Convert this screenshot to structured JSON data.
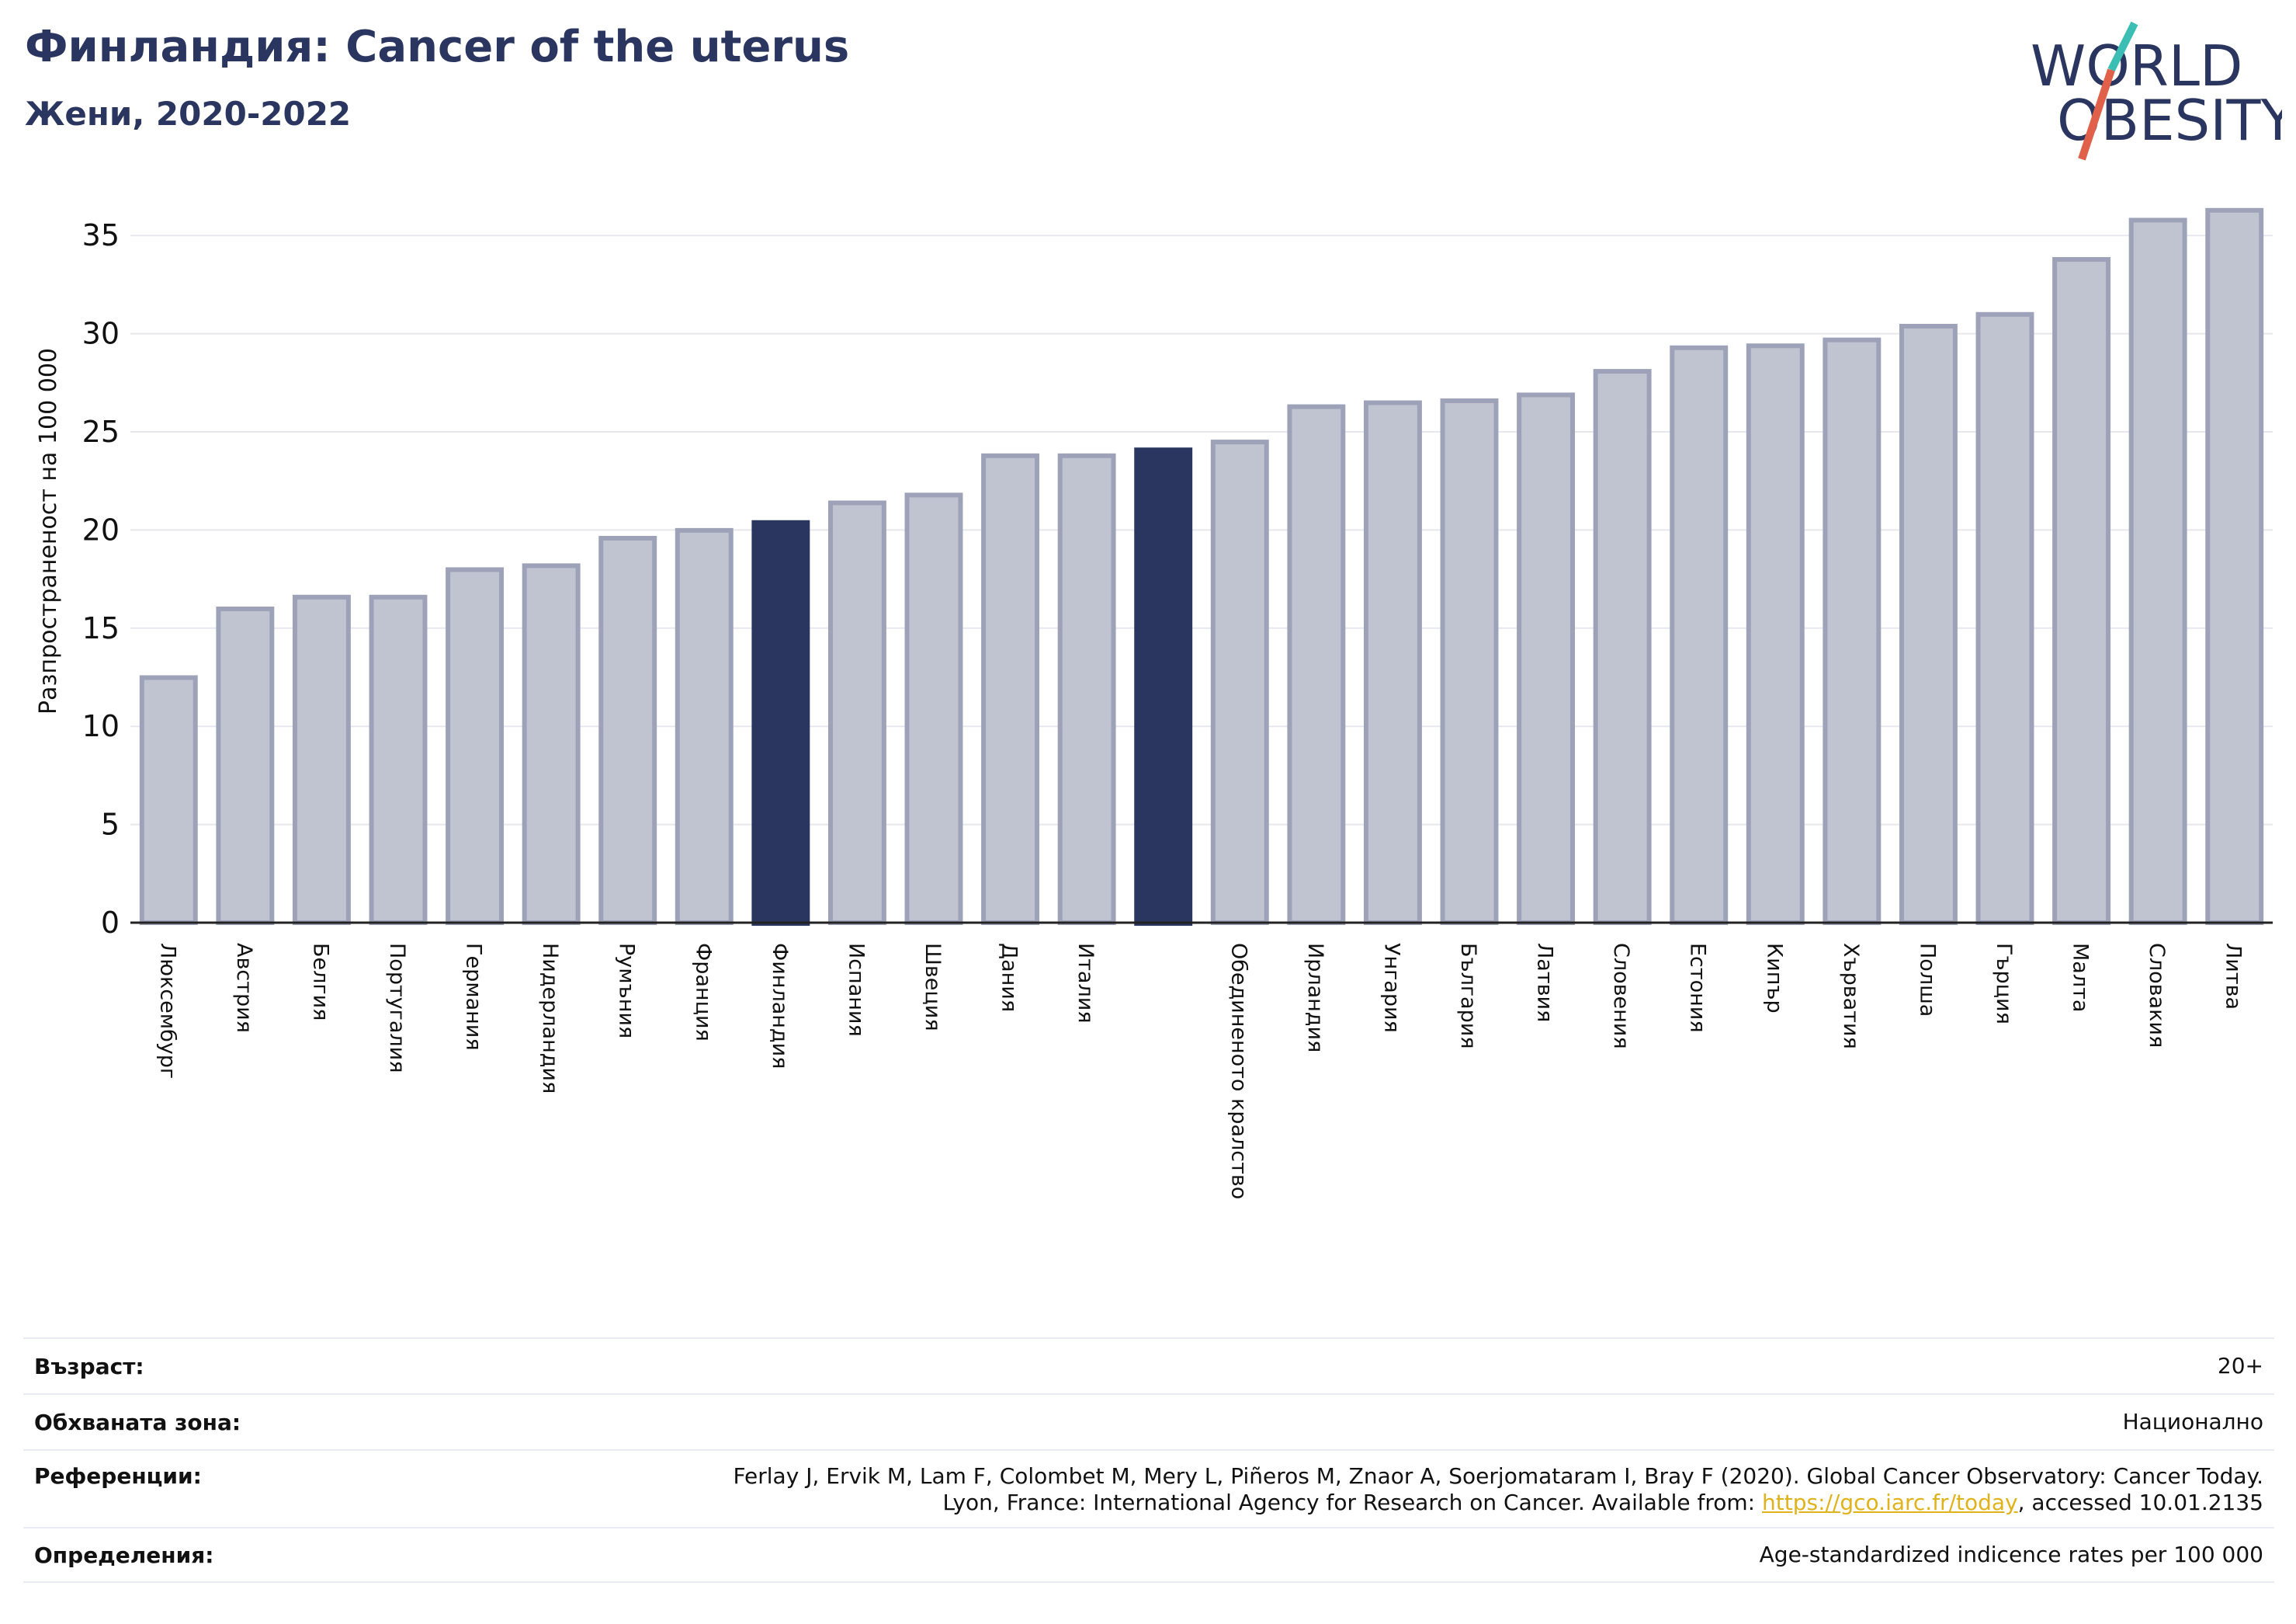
{
  "header": {
    "title": "Финландия: Cancer of the uterus",
    "subtitle": "Жени, 2020-2022"
  },
  "logo": {
    "line1": "WORLD",
    "line2": "OBESITY"
  },
  "colors": {
    "bar": "#c0c3d0",
    "bar_border": "#9ea2b8",
    "highlight": "#2a3560",
    "grid": "#e6e8ee"
  },
  "chart_data": {
    "type": "bar",
    "title": "Финландия: Cancer of the uterus",
    "subtitle": "Жени, 2020-2022",
    "ylabel": "Разпространеност  на 100 000",
    "ylim": [
      0,
      37.5
    ],
    "yticks": [
      0,
      5,
      10,
      15,
      20,
      25,
      30,
      35
    ],
    "grid": true,
    "highlight": [
      "Финландия",
      ""
    ],
    "categories": [
      "Люксембург",
      "Австрия",
      "Белгия",
      "Португалия",
      "Германия",
      "Нидерландия",
      "Румъния",
      "Франция",
      "Финландия",
      "Испания",
      "Швеция",
      "Дания",
      "Италия",
      "",
      "Обединеното кралство",
      "Ирландия",
      "Унгария",
      "България",
      "Латвия",
      "Словения",
      "Естония",
      "Кипър",
      "Хърватия",
      "Полша",
      "Гърция",
      "Малта",
      "Словакия",
      "Литва"
    ],
    "values": [
      12.6,
      16.1,
      16.7,
      16.7,
      18.1,
      18.3,
      19.7,
      20.1,
      20.5,
      21.5,
      21.9,
      23.9,
      23.9,
      24.2,
      24.6,
      26.4,
      26.6,
      26.7,
      27.0,
      28.2,
      29.4,
      29.5,
      29.8,
      30.5,
      31.1,
      33.9,
      35.9,
      36.4
    ]
  },
  "info": {
    "rows": [
      {
        "key": "Възраст:",
        "value": "20+"
      },
      {
        "key": "Обхваната зона:",
        "value": "Национално"
      },
      {
        "key": "Референции:",
        "value_line1": "Ferlay J, Ervik M, Lam F, Colombet M, Mery L, Piñeros M, Znaor A, Soerjomataram I, Bray F (2020). Global Cancer Observatory: Cancer Today.",
        "value_line2_prefix": "Lyon, France: International Agency for Research on Cancer. Available from: ",
        "value_link": "https://gco.iarc.fr/today",
        "value_line2_suffix": ", accessed 10.01.2135"
      },
      {
        "key": "Определения:",
        "value": "Age-standardized indicence rates per 100 000"
      }
    ]
  }
}
